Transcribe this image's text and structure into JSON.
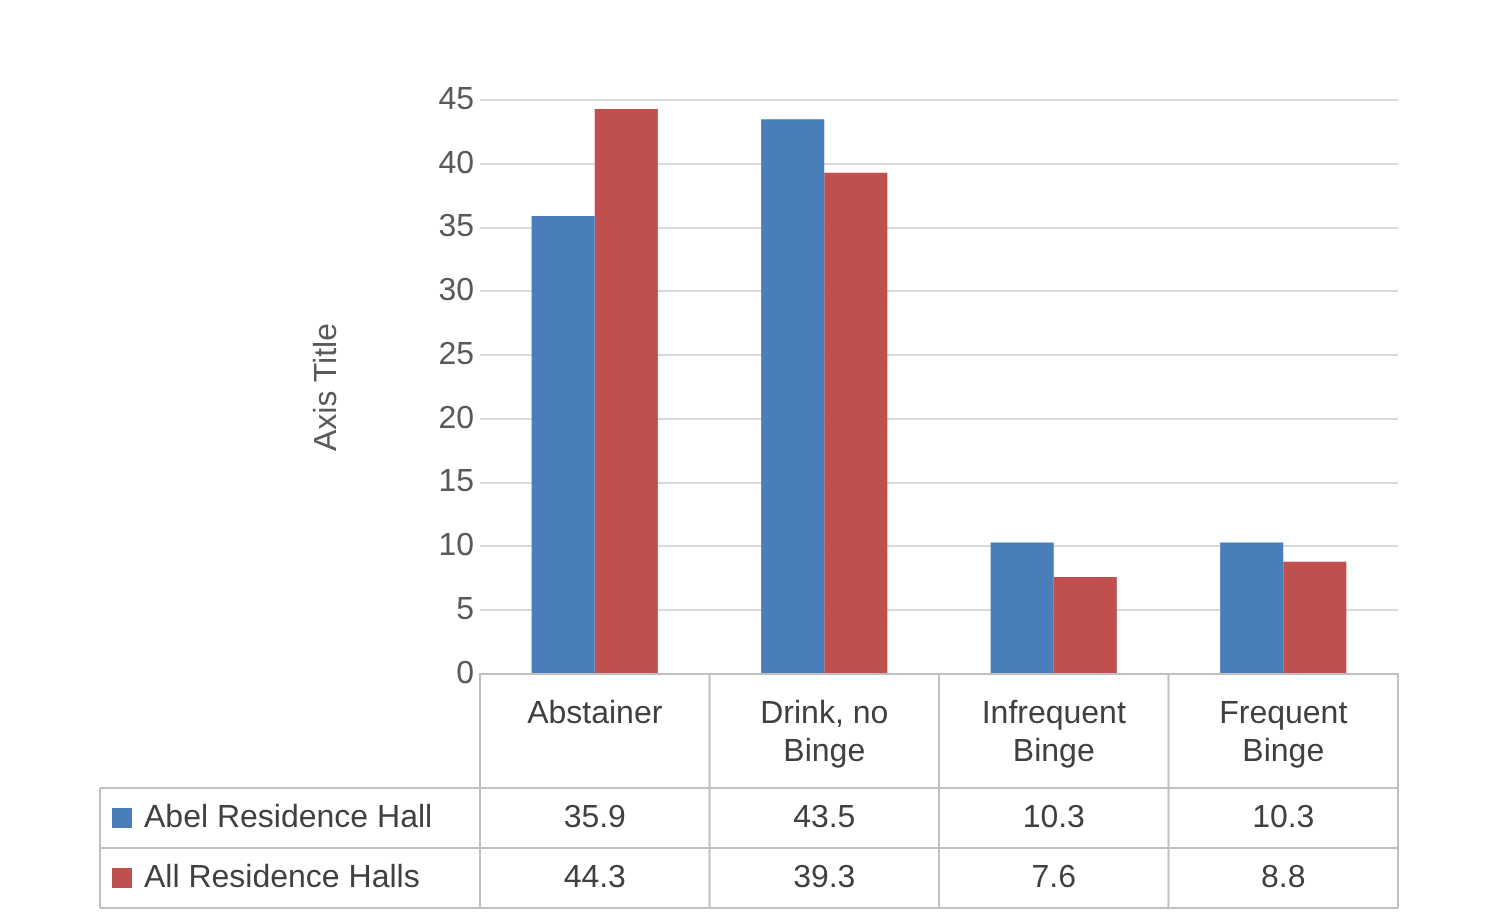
{
  "chart_data": {
    "type": "bar",
    "ylabel": "Axis Title",
    "categories": [
      "Abstainer",
      "Drink, no Binge",
      "Infrequent Binge",
      "Frequent Binge"
    ],
    "series": [
      {
        "name": "Abel Residence Hall",
        "color": "#4a7ebb",
        "values": [
          35.9,
          43.5,
          10.3,
          10.3
        ]
      },
      {
        "name": "All Residence Halls",
        "color": "#c0504d",
        "values": [
          44.3,
          39.3,
          7.6,
          8.8
        ]
      }
    ],
    "ylim": [
      0,
      45
    ],
    "yticks": [
      0,
      5,
      10,
      15,
      20,
      25,
      30,
      35,
      40,
      45
    ],
    "grid": "y",
    "legend": "bottom",
    "data_labels": true
  }
}
